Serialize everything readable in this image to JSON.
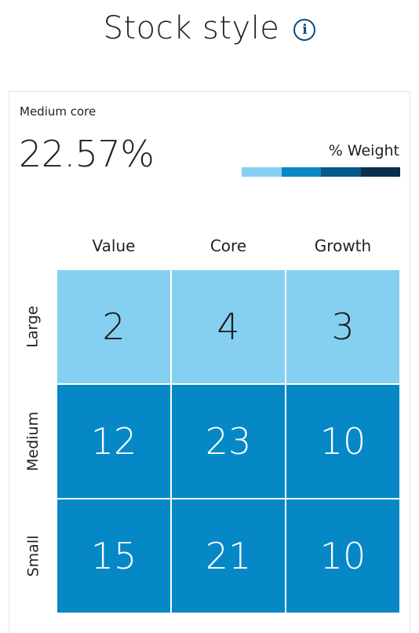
{
  "header": {
    "title": "Stock style",
    "info_icon_glyph": "i"
  },
  "selection": {
    "label": "Medium core",
    "value": "22.57%"
  },
  "legend": {
    "title": "% Weight",
    "colors": [
      "#85d0f1",
      "#0688c6",
      "#05588a",
      "#0b2f4a"
    ]
  },
  "columns": [
    "Value",
    "Core",
    "Growth"
  ],
  "rows": [
    "Large",
    "Medium",
    "Small"
  ],
  "grid": [
    [
      "2",
      "4",
      "3"
    ],
    [
      "12",
      "23",
      "10"
    ],
    [
      "15",
      "21",
      "10"
    ]
  ],
  "cell_colors": {
    "light": "#85d0f1",
    "mid": "#0688c6"
  }
}
